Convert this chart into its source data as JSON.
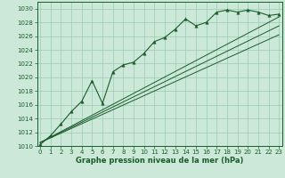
{
  "title": "Graphe pression niveau de la mer (hPa)",
  "xlim": [
    -0.3,
    23.3
  ],
  "ylim": [
    1010,
    1031
  ],
  "xticks": [
    0,
    1,
    2,
    3,
    4,
    5,
    6,
    7,
    8,
    9,
    10,
    11,
    12,
    13,
    14,
    15,
    16,
    17,
    18,
    19,
    20,
    21,
    22,
    23
  ],
  "yticks": [
    1010,
    1012,
    1014,
    1016,
    1018,
    1020,
    1022,
    1024,
    1026,
    1028,
    1030
  ],
  "bg_color": "#cce8d8",
  "grid_color": "#99ccb3",
  "line_color": "#1a5c2a",
  "marker": "^",
  "marker_size": 2.5,
  "main_data_x": [
    0,
    1,
    2,
    3,
    4,
    5,
    6,
    7,
    8,
    9,
    10,
    11,
    12,
    13,
    14,
    15,
    16,
    17,
    18,
    19,
    20,
    21,
    22,
    23
  ],
  "main_data_y": [
    1010.2,
    1011.5,
    1013.2,
    1015.0,
    1016.5,
    1019.5,
    1016.2,
    1020.8,
    1021.8,
    1022.2,
    1023.5,
    1025.2,
    1025.8,
    1027.0,
    1028.5,
    1027.5,
    1028.0,
    1029.5,
    1029.8,
    1029.5,
    1029.8,
    1029.5,
    1029.0,
    1029.2
  ],
  "trend_lines": [
    [
      [
        0,
        1010.5
      ],
      [
        23,
        1028.8
      ]
    ],
    [
      [
        0,
        1010.5
      ],
      [
        23,
        1027.5
      ]
    ],
    [
      [
        0,
        1010.5
      ],
      [
        23,
        1026.2
      ]
    ]
  ]
}
